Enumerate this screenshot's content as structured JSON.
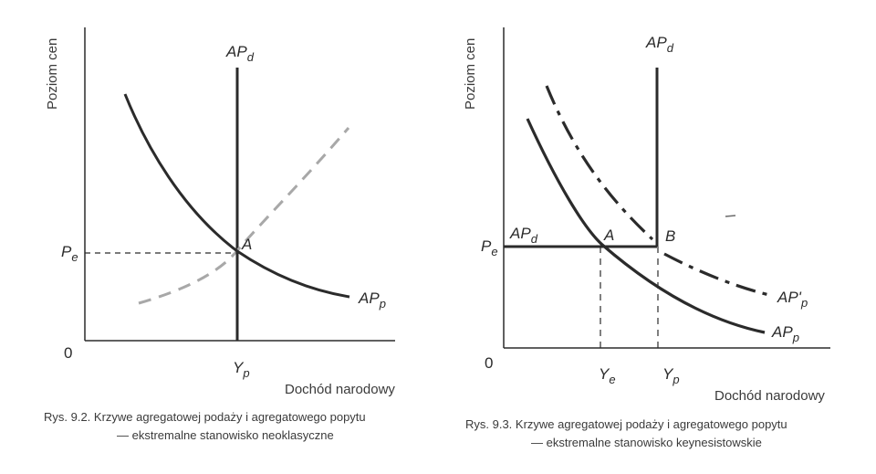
{
  "figures": [
    {
      "id": "fig-9-2",
      "y_axis_label": "Poziom cen",
      "x_axis_label": "Dochód narodowy",
      "origin_label": "0",
      "price_label": "P",
      "price_sub": "e",
      "output_label": "Y",
      "output_sub": "p",
      "ad_label": "AP",
      "ad_sub": "d",
      "as_label": "AP",
      "as_sub": "p",
      "point_label": "A",
      "caption_line1": "Rys. 9.2. Krzywe agregatowej podaży i agregatowego popytu",
      "caption_line2": "— ekstremalne stanowisko neoklasyczne"
    },
    {
      "id": "fig-9-3",
      "y_axis_label": "Poziom cen",
      "x_axis_label": "Dochód narodowy",
      "origin_label": "0",
      "price_label": "P",
      "price_sub": "e",
      "ye_label": "Y",
      "ye_sub": "e",
      "yp_label": "Y",
      "yp_sub": "p",
      "ad_vertical_label": "AP",
      "ad_vertical_sub": "d",
      "ad_horizontal_label": "AP",
      "ad_horizontal_sub": "d",
      "as_label": "AP",
      "as_sub": "p",
      "as_shift_label": "AP'",
      "as_shift_sub": "p",
      "point_a_label": "A",
      "point_b_label": "B",
      "caption_line1": "Rys. 9.3. Krzywe agregatowej podaży i agregatowego popytu",
      "caption_line2": "— ekstremalne stanowisko keynesistowskie"
    }
  ],
  "colors": {
    "ink": "#2b2b2b",
    "faded": "#a8a8a8"
  }
}
